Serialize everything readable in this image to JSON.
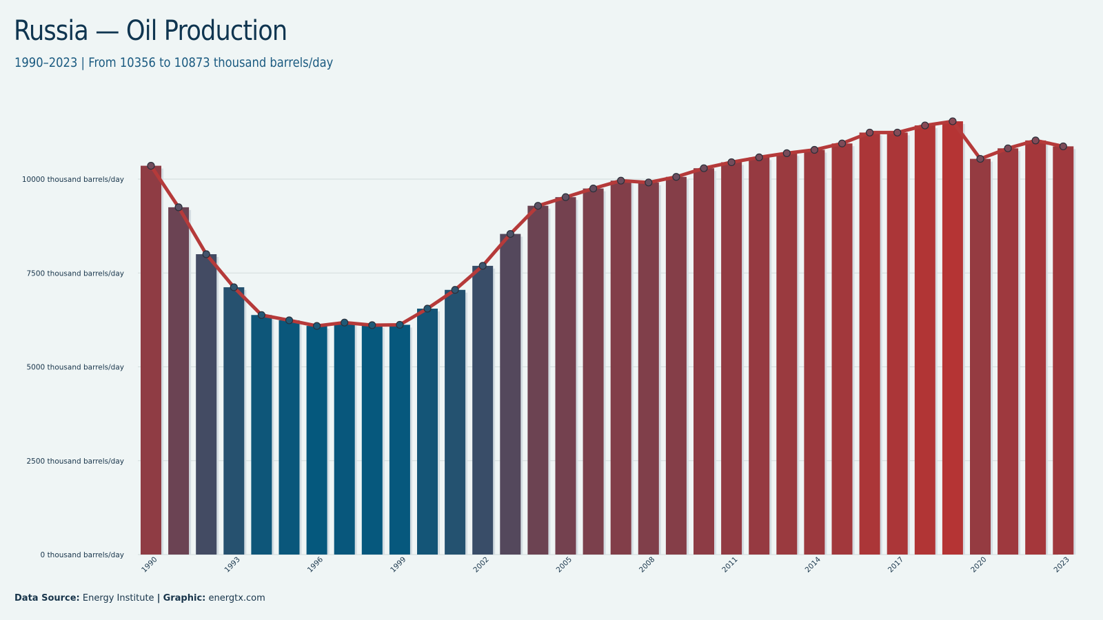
{
  "header": {
    "title": "Russia — Oil Production",
    "subtitle": "1990–2023 | From 10356 to 10873 thousand barrels/day"
  },
  "footer": {
    "source_label": "Data Source:",
    "source_value": "Energy Institute",
    "separator": "|",
    "graphic_label": "Graphic:",
    "graphic_value": "energtx.com"
  },
  "colors": {
    "line": "#b53a3a",
    "low": "#05587d",
    "high": "#b53434",
    "grid": "#d2dcdc",
    "bar_shadow": "#d4dde2"
  },
  "chart_data": {
    "type": "bar",
    "overlay": "line",
    "x": [
      1990,
      1991,
      1992,
      1993,
      1994,
      1995,
      1996,
      1997,
      1998,
      1999,
      2000,
      2001,
      2002,
      2003,
      2004,
      2005,
      2006,
      2007,
      2008,
      2009,
      2010,
      2011,
      2012,
      2013,
      2014,
      2015,
      2016,
      2017,
      2018,
      2019,
      2020,
      2021,
      2022,
      2023
    ],
    "values": [
      10356,
      9250,
      8000,
      7120,
      6380,
      6240,
      6090,
      6180,
      6110,
      6120,
      6550,
      7050,
      7690,
      8540,
      9290,
      9520,
      9750,
      9960,
      9910,
      10060,
      10290,
      10450,
      10580,
      10690,
      10780,
      10950,
      11240,
      11240,
      11430,
      11540,
      10540,
      10820,
      11030,
      10873
    ],
    "xticks": [
      1990,
      1993,
      1996,
      1999,
      2002,
      2005,
      2008,
      2011,
      2014,
      2017,
      2020,
      2023
    ],
    "yticks": [
      0,
      2500,
      5000,
      7500,
      10000
    ],
    "ytick_labels": [
      "0 thousand barrels/day",
      "2500 thousand barrels/day",
      "5000 thousand barrels/day",
      "7500 thousand barrels/day",
      "10000 thousand barrels/day"
    ],
    "ylim": [
      0,
      12000
    ],
    "xlabel": "",
    "ylabel": "",
    "grid": true,
    "legend": "none"
  }
}
